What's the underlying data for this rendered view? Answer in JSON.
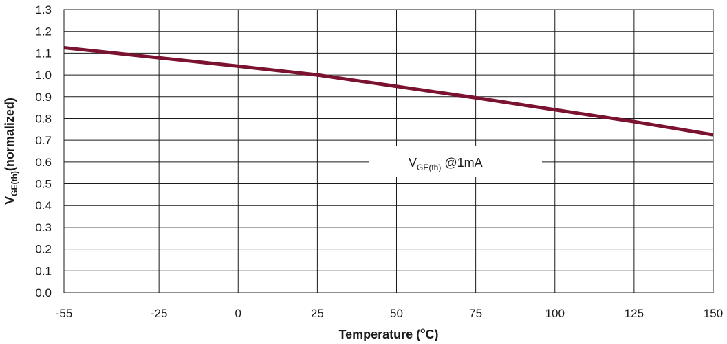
{
  "chart_data": {
    "type": "line",
    "xlabel": "Temperature (",
    "xlabel_sup": "o",
    "xlabel_tail": "C)",
    "ylabel_main": "V",
    "ylabel_sub": "GE(th)",
    "ylabel_tail": "(normalized)",
    "xlim": [
      -55,
      150
    ],
    "ylim": [
      0.0,
      1.3
    ],
    "x_ticks": [
      -55,
      -25,
      0,
      25,
      50,
      75,
      100,
      125,
      150
    ],
    "x_tick_labels": [
      "-55",
      "-25",
      "0",
      "25",
      "50",
      "75",
      "100",
      "125",
      "150"
    ],
    "y_ticks": [
      0.0,
      0.1,
      0.2,
      0.3,
      0.4,
      0.5,
      0.6,
      0.7,
      0.8,
      0.9,
      1.0,
      1.1,
      1.2,
      1.3
    ],
    "y_tick_labels": [
      "0.0",
      "0.1",
      "0.2",
      "0.3",
      "0.4",
      "0.5",
      "0.6",
      "0.7",
      "0.8",
      "0.9",
      "1.0",
      "1.1",
      "1.2",
      "1.3"
    ],
    "grid": true,
    "series": [
      {
        "x": [
          -55,
          0,
          25,
          75,
          125,
          150
        ],
        "y": [
          1.125,
          1.04,
          1.0,
          0.895,
          0.785,
          0.725
        ],
        "color": "#7a1230"
      }
    ],
    "annotation": {
      "main": "V",
      "sub": "GE(th)",
      "tail": " @1mA"
    }
  }
}
